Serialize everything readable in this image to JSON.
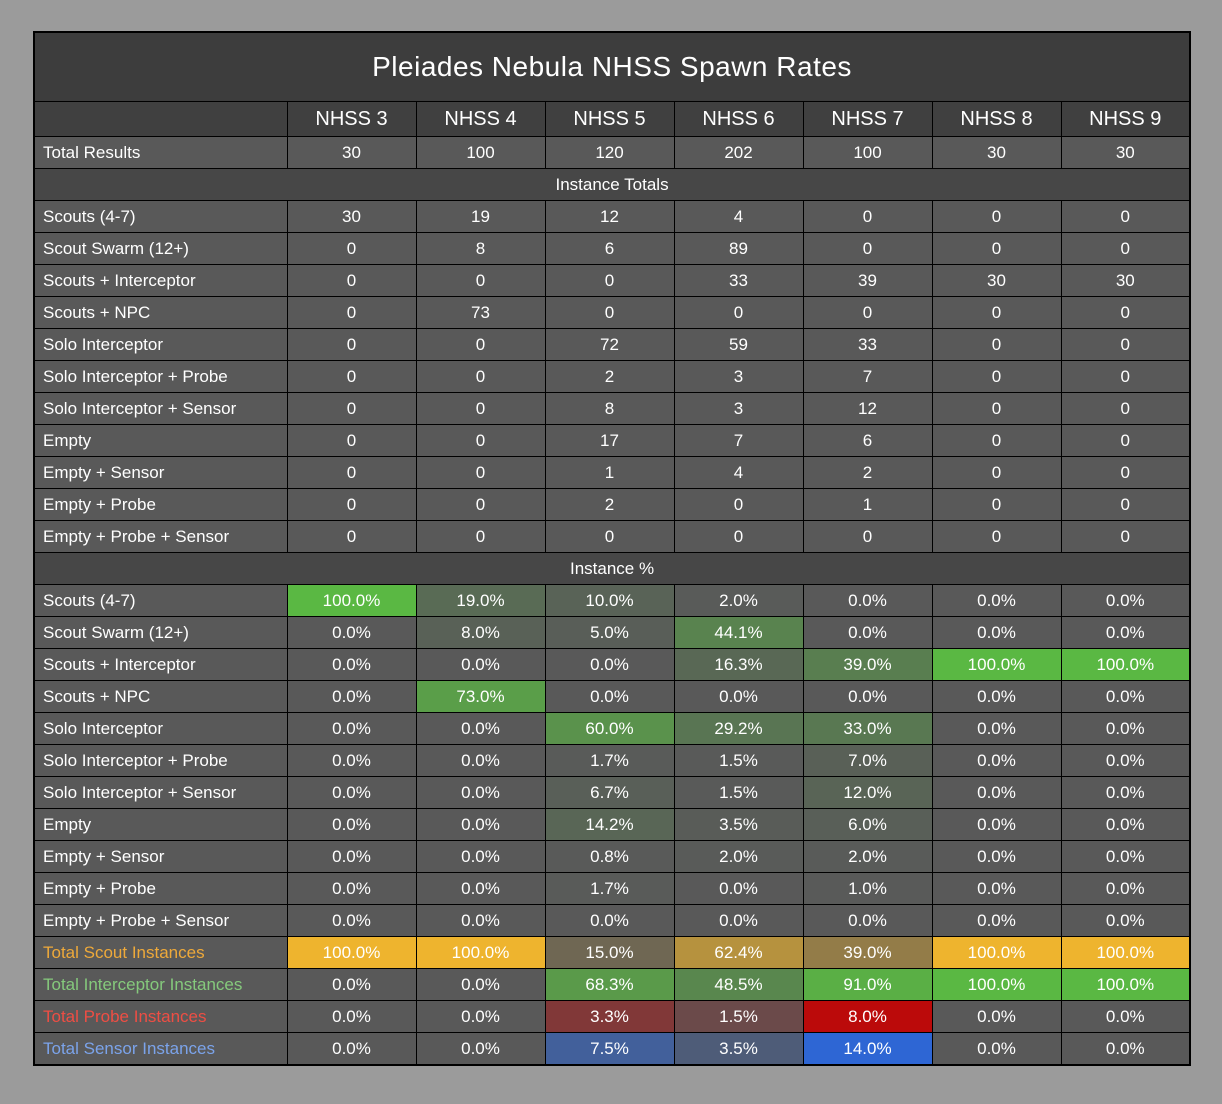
{
  "colors": {
    "page_bg": "#9b9b9b",
    "cell_bg": "#595959",
    "title_bg": "#3d3d3d",
    "header_bg": "#404040",
    "section_bg": "#474747",
    "border": "#000000",
    "text": "#ffffff",
    "scale_green": "#5ab843",
    "scale_gold": "#eeb42e",
    "scale_red": "#bb0a0a",
    "scale_blue": "#2e66d4",
    "label_gold": "#eea93a",
    "label_green": "#85c97c",
    "label_red": "#ee4e44",
    "label_blue": "#7ba3ea"
  },
  "chart_data": {
    "type": "table",
    "title": "Pleiades Nebula NHSS Spawn Rates",
    "columns": [
      "NHSS 3",
      "NHSS 4",
      "NHSS 5",
      "NHSS 6",
      "NHSS 7",
      "NHSS 8",
      "NHSS 9"
    ],
    "total_results": {
      "label": "Total Results",
      "values": [
        30,
        100,
        120,
        202,
        100,
        30,
        30
      ]
    },
    "sections": [
      {
        "header": "Instance Totals",
        "percent": false,
        "rows": [
          {
            "label": "Scouts (4-7)",
            "values": [
              30,
              19,
              12,
              4,
              0,
              0,
              0
            ]
          },
          {
            "label": "Scout Swarm (12+)",
            "values": [
              0,
              8,
              6,
              89,
              0,
              0,
              0
            ]
          },
          {
            "label": "Scouts + Interceptor",
            "values": [
              0,
              0,
              0,
              33,
              39,
              30,
              30
            ]
          },
          {
            "label": "Scouts + NPC",
            "values": [
              0,
              73,
              0,
              0,
              0,
              0,
              0
            ]
          },
          {
            "label": "Solo Interceptor",
            "values": [
              0,
              0,
              72,
              59,
              33,
              0,
              0
            ]
          },
          {
            "label": "Solo Interceptor + Probe",
            "values": [
              0,
              0,
              2,
              3,
              7,
              0,
              0
            ]
          },
          {
            "label": "Solo Interceptor + Sensor",
            "values": [
              0,
              0,
              8,
              3,
              12,
              0,
              0
            ]
          },
          {
            "label": "Empty",
            "values": [
              0,
              0,
              17,
              7,
              6,
              0,
              0
            ]
          },
          {
            "label": "Empty + Sensor",
            "values": [
              0,
              0,
              1,
              4,
              2,
              0,
              0
            ]
          },
          {
            "label": "Empty + Probe",
            "values": [
              0,
              0,
              2,
              0,
              1,
              0,
              0
            ]
          },
          {
            "label": "Empty + Probe + Sensor",
            "values": [
              0,
              0,
              0,
              0,
              0,
              0,
              0
            ]
          }
        ]
      },
      {
        "header": "Instance %",
        "percent": true,
        "rows": [
          {
            "label": "Scouts (4-7)",
            "values": [
              100.0,
              19.0,
              10.0,
              2.0,
              0.0,
              0.0,
              0.0
            ]
          },
          {
            "label": "Scout Swarm (12+)",
            "values": [
              0.0,
              8.0,
              5.0,
              44.1,
              0.0,
              0.0,
              0.0
            ]
          },
          {
            "label": "Scouts + Interceptor",
            "values": [
              0.0,
              0.0,
              0.0,
              16.3,
              39.0,
              100.0,
              100.0
            ]
          },
          {
            "label": "Scouts + NPC",
            "values": [
              0.0,
              73.0,
              0.0,
              0.0,
              0.0,
              0.0,
              0.0
            ]
          },
          {
            "label": "Solo Interceptor",
            "values": [
              0.0,
              0.0,
              60.0,
              29.2,
              33.0,
              0.0,
              0.0
            ]
          },
          {
            "label": "Solo Interceptor + Probe",
            "values": [
              0.0,
              0.0,
              1.7,
              1.5,
              7.0,
              0.0,
              0.0
            ]
          },
          {
            "label": "Solo Interceptor + Sensor",
            "values": [
              0.0,
              0.0,
              6.7,
              1.5,
              12.0,
              0.0,
              0.0
            ]
          },
          {
            "label": "Empty",
            "values": [
              0.0,
              0.0,
              14.2,
              3.5,
              6.0,
              0.0,
              0.0
            ]
          },
          {
            "label": "Empty + Sensor",
            "values": [
              0.0,
              0.0,
              0.8,
              2.0,
              2.0,
              0.0,
              0.0
            ]
          },
          {
            "label": "Empty + Probe",
            "values": [
              0.0,
              0.0,
              1.7,
              0.0,
              1.0,
              0.0,
              0.0
            ]
          },
          {
            "label": "Empty + Probe + Sensor",
            "values": [
              0.0,
              0.0,
              0.0,
              0.0,
              0.0,
              0.0,
              0.0
            ]
          }
        ]
      }
    ],
    "summary_rows": [
      {
        "label": "Total Scout Instances",
        "scale": "gold",
        "values": [
          100.0,
          100.0,
          15.0,
          62.4,
          39.0,
          100.0,
          100.0
        ]
      },
      {
        "label": "Total Interceptor Instances",
        "scale": "green",
        "values": [
          0.0,
          0.0,
          68.3,
          48.5,
          91.0,
          100.0,
          100.0
        ]
      },
      {
        "label": "Total Probe Instances",
        "scale": "red",
        "values": [
          0.0,
          0.0,
          3.3,
          1.5,
          8.0,
          0.0,
          0.0
        ]
      },
      {
        "label": "Total Sensor Instances",
        "scale": "blue",
        "values": [
          0.0,
          0.0,
          7.5,
          3.5,
          14.0,
          0.0,
          0.0
        ]
      }
    ]
  }
}
